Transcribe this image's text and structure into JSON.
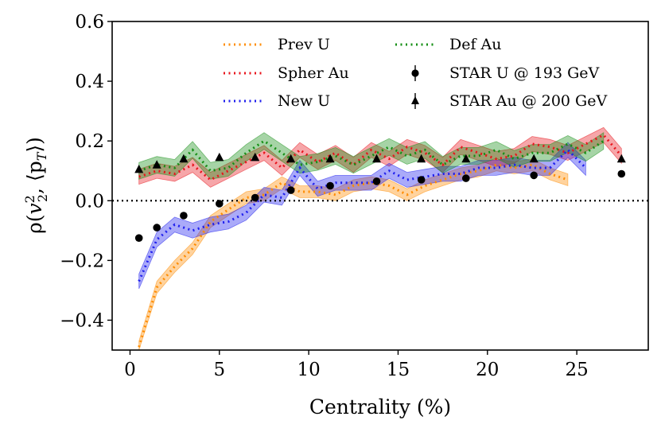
{
  "chart_data": {
    "type": "line",
    "title": "",
    "xlabel": "Centrality (%)",
    "ylabel_parts": {
      "rho": "ρ(",
      "v": "v",
      "sup": "2",
      "sub": "2",
      "rest": ", ⟨p",
      "subT": "T",
      "close": "⟩)"
    },
    "xlim": [
      -1,
      29
    ],
    "ylim": [
      -0.5,
      0.6
    ],
    "x_ticks": [
      0,
      5,
      10,
      15,
      20,
      25
    ],
    "x_tick_labels": [
      "0",
      "5",
      "10",
      "15",
      "20",
      "25"
    ],
    "y_ticks": [
      -0.4,
      -0.2,
      0.0,
      0.2,
      0.4,
      0.6
    ],
    "y_tick_labels": [
      "−0.4",
      "−0.2",
      "0.0",
      "0.2",
      "0.4",
      "0.6"
    ],
    "reference_line": {
      "y": 0.0,
      "style": "dotted"
    },
    "series": [
      {
        "name": "Prev U",
        "color": "#ff8c00",
        "x": [
          0.5,
          1.5,
          2.5,
          3.5,
          4.5,
          5.5,
          6.5,
          7.5,
          8.5,
          9.5,
          10.5,
          11.5,
          12.5,
          13.5,
          14.5,
          15.5,
          16.5,
          17.5,
          18.5,
          19.5,
          20.5,
          21.5,
          22.5,
          23.5,
          24.5
        ],
        "y": [
          -0.49,
          -0.29,
          -0.22,
          -0.16,
          -0.07,
          -0.03,
          0.01,
          0.02,
          0.06,
          0.03,
          0.03,
          0.02,
          0.05,
          0.06,
          0.05,
          0.02,
          0.05,
          0.07,
          0.09,
          0.1,
          0.12,
          0.11,
          0.12,
          0.09,
          0.07
        ],
        "band_half_width": 0.02
      },
      {
        "name": "Spher Au",
        "color": "#e8141c",
        "x": [
          0.5,
          1.5,
          2.5,
          3.5,
          4.5,
          5.5,
          6.5,
          7.5,
          8.5,
          9.5,
          10.5,
          11.5,
          12.5,
          13.5,
          14.5,
          15.5,
          16.5,
          17.5,
          18.5,
          19.5,
          20.5,
          21.5,
          22.5,
          23.5,
          24.5,
          25.5,
          26.5,
          27.5
        ],
        "y": [
          0.08,
          0.1,
          0.09,
          0.12,
          0.07,
          0.1,
          0.13,
          0.16,
          0.11,
          0.17,
          0.13,
          0.16,
          0.12,
          0.17,
          0.14,
          0.18,
          0.16,
          0.12,
          0.18,
          0.16,
          0.14,
          0.15,
          0.19,
          0.18,
          0.16,
          0.19,
          0.22,
          0.15
        ],
        "band_half_width": 0.025
      },
      {
        "name": "New U",
        "color": "#1f1fee",
        "x": [
          0.5,
          1.5,
          2.5,
          3.5,
          4.5,
          5.5,
          6.5,
          7.5,
          8.5,
          9.5,
          10.5,
          11.5,
          12.5,
          13.5,
          14.5,
          15.5,
          16.5,
          17.5,
          18.5,
          19.5,
          20.5,
          21.5,
          22.5,
          23.5,
          24.5,
          25.5
        ],
        "y": [
          -0.27,
          -0.13,
          -0.08,
          -0.1,
          -0.08,
          -0.07,
          -0.04,
          0.02,
          0.01,
          0.11,
          0.04,
          0.06,
          0.06,
          0.06,
          0.1,
          0.07,
          0.08,
          0.09,
          0.09,
          0.11,
          0.11,
          0.12,
          0.11,
          0.11,
          0.17,
          0.11
        ],
        "band_half_width": 0.025
      },
      {
        "name": "Def Au",
        "color": "#158f15",
        "x": [
          0.5,
          1.5,
          2.5,
          3.5,
          4.5,
          5.5,
          6.5,
          7.5,
          8.5,
          9.5,
          10.5,
          11.5,
          12.5,
          13.5,
          14.5,
          15.5,
          16.5,
          17.5,
          18.5,
          19.5,
          20.5,
          21.5,
          22.5,
          23.5,
          24.5,
          25.5,
          26.5
        ],
        "y": [
          0.1,
          0.12,
          0.11,
          0.17,
          0.1,
          0.11,
          0.16,
          0.2,
          0.16,
          0.12,
          0.13,
          0.15,
          0.12,
          0.15,
          0.18,
          0.15,
          0.17,
          0.12,
          0.15,
          0.15,
          0.17,
          0.14,
          0.16,
          0.16,
          0.19,
          0.16,
          0.2
        ],
        "band_half_width": 0.028
      }
    ],
    "points": [
      {
        "name": "STAR U @ 193 GeV",
        "marker": "circle",
        "x": [
          0.5,
          1.5,
          3.0,
          5.0,
          7.0,
          9.0,
          11.2,
          13.8,
          16.3,
          18.8,
          22.6,
          27.5
        ],
        "y": [
          -0.125,
          -0.09,
          -0.05,
          -0.01,
          0.01,
          0.035,
          0.05,
          0.065,
          0.07,
          0.075,
          0.085,
          0.09
        ]
      },
      {
        "name": "STAR Au @ 200 GeV",
        "marker": "triangle",
        "x": [
          0.5,
          1.5,
          3.0,
          5.0,
          7.0,
          9.0,
          11.2,
          13.8,
          16.3,
          18.8,
          22.6,
          27.5
        ],
        "y": [
          0.105,
          0.12,
          0.14,
          0.145,
          0.145,
          0.14,
          0.14,
          0.14,
          0.14,
          0.14,
          0.14,
          0.14
        ]
      }
    ],
    "legend": {
      "placement": "top",
      "columns": 2,
      "entries": [
        "Prev U",
        "Spher Au",
        "New U",
        "Def Au",
        "STAR U @ 193 GeV",
        "STAR Au @ 200 GeV"
      ]
    }
  }
}
